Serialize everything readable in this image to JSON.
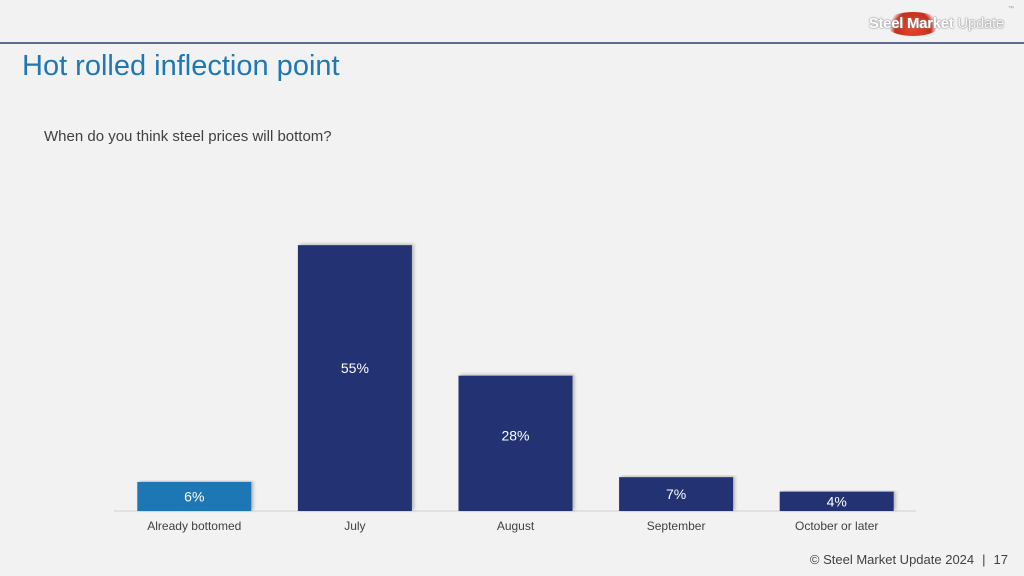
{
  "logo": {
    "brand_bold": "Steel Market",
    "brand_light": "Update"
  },
  "page": {
    "title": "Hot rolled inflection point"
  },
  "chart_data": {
    "type": "bar",
    "title": "When do you think steel prices will bottom?",
    "categories": [
      "Already bottomed",
      "July",
      "August",
      "September",
      "October or later"
    ],
    "values": [
      6,
      55,
      28,
      7,
      4
    ],
    "value_labels": [
      "6%",
      "55%",
      "28%",
      "7%",
      "4%"
    ],
    "highlight_index": 0,
    "colors": {
      "highlight": "#1f77b4",
      "default": "#233372"
    },
    "xlabel": "",
    "ylabel": "",
    "ylim": [
      0,
      60
    ],
    "grid": false,
    "legend": "none"
  },
  "footer": {
    "copyright": "© Steel Market Update 2024",
    "separator": "|",
    "page_number": "17"
  }
}
